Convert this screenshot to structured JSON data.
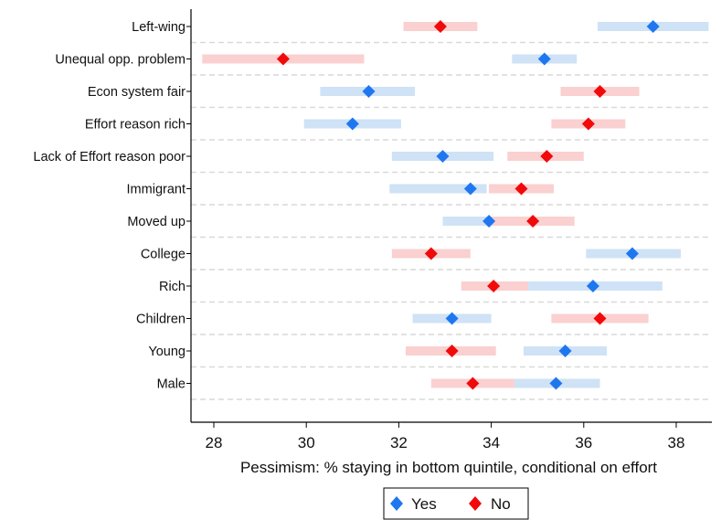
{
  "chart_data": {
    "type": "scatter",
    "subtype": "dot-and-interval (coefficient plot)",
    "title": "",
    "xlabel": "Pessimism: % staying in bottom quintile, conditional on effort",
    "ylabel": "",
    "xlim": [
      27.7,
      39
    ],
    "xticks": [
      28,
      30,
      32,
      34,
      36,
      38
    ],
    "grid": "horizontal dashed separators between categories",
    "legend_position": "bottom-center",
    "categories": [
      "Left-wing",
      "Unequal opp. problem",
      "Econ system fair",
      "Effort reason rich",
      "Lack of Effort reason poor",
      "Immigrant",
      "Moved up",
      "College",
      "Rich",
      "Children",
      "Young",
      "Male"
    ],
    "series": [
      {
        "name": "Yes",
        "color": "#1f77f0",
        "band_color": "#cfe2f6",
        "marker": "diamond",
        "values": [
          37.5,
          35.15,
          31.35,
          31.0,
          32.95,
          33.55,
          33.95,
          37.05,
          36.2,
          33.15,
          35.6,
          35.4
        ],
        "ci_low": [
          36.3,
          34.45,
          30.3,
          29.95,
          31.85,
          31.8,
          32.95,
          36.05,
          34.8,
          32.3,
          34.7,
          34.5
        ],
        "ci_high": [
          38.7,
          35.85,
          32.35,
          32.05,
          34.05,
          33.9,
          34.6,
          38.1,
          37.7,
          34.0,
          36.5,
          36.35
        ]
      },
      {
        "name": "No",
        "color": "#f00a0a",
        "band_color": "#fad0d0",
        "marker": "diamond",
        "values": [
          32.9,
          29.5,
          36.35,
          36.1,
          35.2,
          34.65,
          34.9,
          32.7,
          34.05,
          36.35,
          33.15,
          33.6
        ],
        "ci_low": [
          32.1,
          27.75,
          35.5,
          35.3,
          34.35,
          33.95,
          33.95,
          31.85,
          33.35,
          35.3,
          32.15,
          32.7
        ],
        "ci_high": [
          33.7,
          31.25,
          37.2,
          36.9,
          36.0,
          35.35,
          35.8,
          33.55,
          34.8,
          37.4,
          34.1,
          34.5
        ]
      }
    ]
  }
}
